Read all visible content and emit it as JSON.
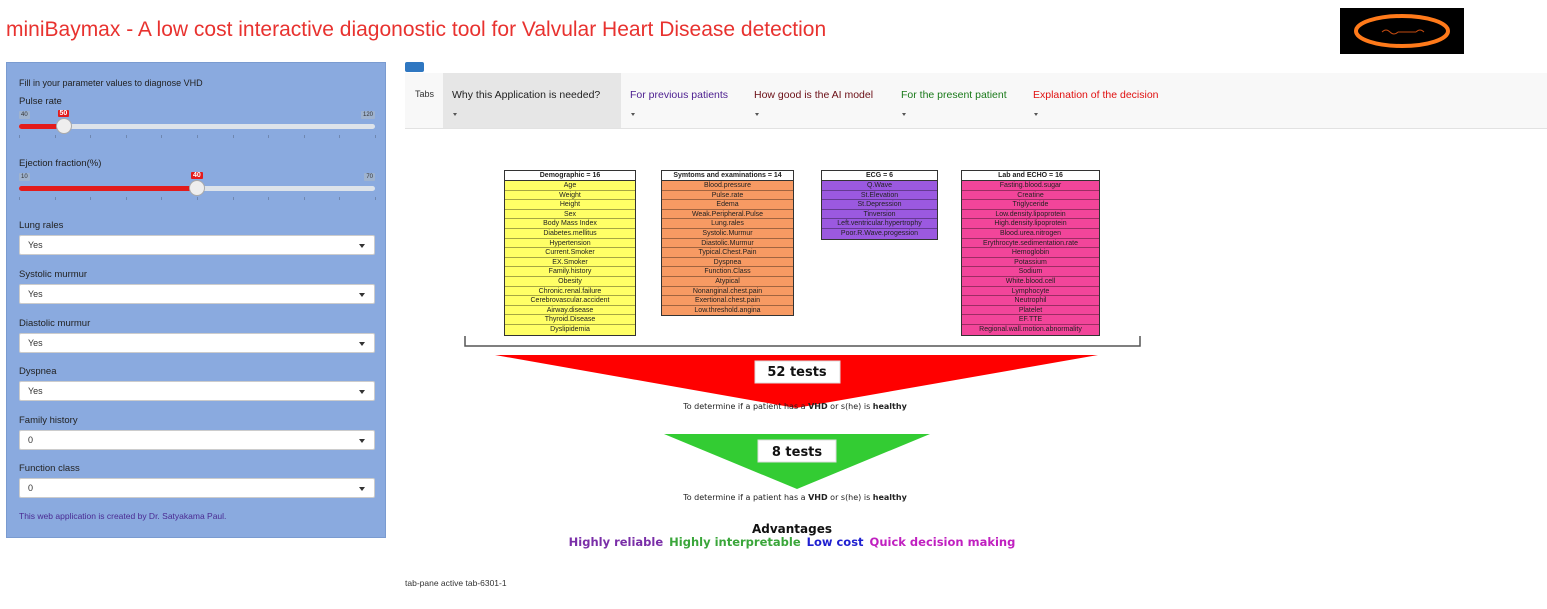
{
  "header": {
    "title": "miniBaymax - A low cost interactive diagonostic tool for Valvular Heart Disease detection"
  },
  "sidebar": {
    "intro": "Fill in your parameter values to diagnose VHD",
    "pulse": {
      "label": "Pulse rate",
      "min": "40",
      "max": "120",
      "value": "50",
      "min_num": 40,
      "max_num": 120,
      "value_num": 50
    },
    "ef": {
      "label": "Ejection fraction(%)",
      "min": "10",
      "max": "70",
      "value": "40",
      "min_num": 10,
      "max_num": 70,
      "value_num": 40
    },
    "selects": [
      {
        "label": "Lung rales",
        "value": "Yes"
      },
      {
        "label": "Systolic murmur",
        "value": "Yes"
      },
      {
        "label": "Diastolic murmur",
        "value": "Yes"
      },
      {
        "label": "Dyspnea",
        "value": "Yes"
      },
      {
        "label": "Family history",
        "value": "0"
      },
      {
        "label": "Function class",
        "value": "0"
      }
    ],
    "credit": "This web application is created by Dr. Satyakama Paul."
  },
  "tabs": {
    "label": "Tabs",
    "items": [
      {
        "label": "Why this Application is needed?",
        "color": "#222222",
        "active": true
      },
      {
        "label": "For previous patients",
        "color": "#4b1d8f"
      },
      {
        "label": "How good is the AI model",
        "color": "#6b0e15"
      },
      {
        "label": "For the present patient",
        "color": "#1a7a1a"
      },
      {
        "label": "Explanation of the decision",
        "color": "#e01010"
      }
    ]
  },
  "infographic": {
    "tables": [
      {
        "title": "Demographic = 16",
        "color": "#ffff66",
        "rows": [
          "Age",
          "Weight",
          "Height",
          "Sex",
          "Body Mass Index",
          "Diabetes.mellitus",
          "Hypertension",
          "Current.Smoker",
          "EX.Smoker",
          "Family.history",
          "Obesity",
          "Chronic.renal.failure",
          "Cerebrovascular.accident",
          "Airway.disease",
          "Thyroid.Disease",
          "Dyslipidemia"
        ]
      },
      {
        "title": "Symtoms and examinations = 14",
        "color": "#f79a63",
        "rows": [
          "Blood.pressure",
          "Pulse.rate",
          "Edema",
          "Weak.Peripheral.Pulse",
          "Lung.rales",
          "Systolic.Murmur",
          "Diastolic.Murmur",
          "Typical.Chest.Pain",
          "Dyspnea",
          "Function.Class",
          "Atypical",
          "Nonanginal.chest.pain",
          "Exertional.chest.pain",
          "Low.threshold.angina"
        ]
      },
      {
        "title": "ECG = 6",
        "color": "#9b59e0",
        "rows": [
          "Q.Wave",
          "St.Elevation",
          "St.Depression",
          "Tinversion",
          "Left.ventricular.hypertrophy",
          "Poor.R.Wave.progession"
        ]
      },
      {
        "title": "Lab and ECHO = 16",
        "color": "#f2459a",
        "rows": [
          "Fasting.blood.sugar",
          "Creatine",
          "Triglyceride",
          "Low.density.lipoprotein",
          "High.density.lipoprotein",
          "Blood.urea.nitrogen",
          "Erythrocyte.sedimentation.rate",
          "Hemoglobin",
          "Potassium",
          "Sodium",
          "White.blood.cell",
          "Lymphocyte",
          "Neutrophil",
          "Platelet",
          "EF.TTE",
          "Regional.wall.motion.abnormality"
        ]
      }
    ],
    "big_label": "52 tests",
    "small_label": "8 tests",
    "caption_pre": "To determine if a patient has a ",
    "caption_vhd": "VHD",
    "caption_mid": " or s(he) is ",
    "caption_healthy": "healthy",
    "red_color": "#ff0000",
    "green_color": "#33cc33",
    "advantages_title": "Advantages",
    "advantages": [
      {
        "text": "Highly reliable",
        "color": "#7a2ea8"
      },
      {
        "text": "Highly interpretable",
        "color": "#3aa63a"
      },
      {
        "text": "Low cost",
        "color": "#1f1fd0"
      },
      {
        "text": "Quick decision making",
        "color": "#c020c0"
      }
    ]
  },
  "footer_note": "tab-pane active tab-6301-1"
}
